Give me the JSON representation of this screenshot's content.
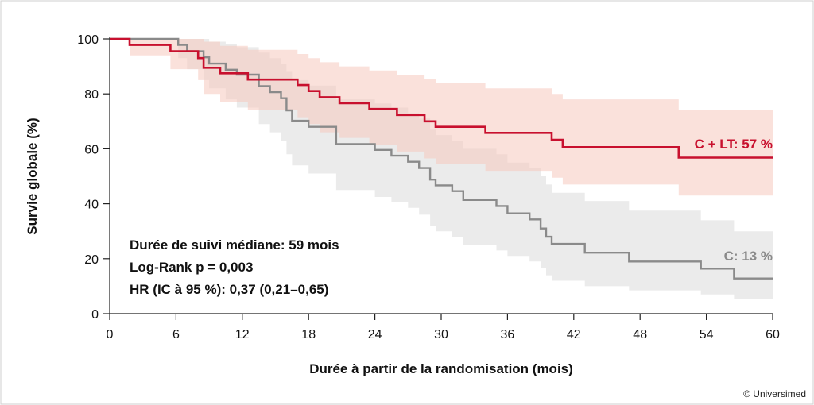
{
  "chart_data": {
    "type": "line",
    "xlabel": "Durée à partir de la randomisation (mois)",
    "ylabel": "Survie globale (%)",
    "xlim": [
      0,
      60
    ],
    "ylim": [
      0,
      100
    ],
    "xticks": [
      0,
      6,
      12,
      18,
      24,
      30,
      36,
      42,
      48,
      54,
      60
    ],
    "yticks": [
      0,
      20,
      40,
      60,
      80,
      100
    ],
    "grid": false,
    "annotations": [
      "Durée de suivi médiane: 59 mois",
      "Log-Rank p = 0,003",
      "HR (IC à 95 %): 0,37 (0,21–0,65)"
    ],
    "series": [
      {
        "label": "C + LT: 57 %",
        "color": "#c8102e",
        "band_color": "#f6c9bd",
        "step": [
          [
            0,
            100
          ],
          [
            1.8,
            97.8
          ],
          [
            5.5,
            95.5
          ],
          [
            8,
            93
          ],
          [
            8.5,
            89.5
          ],
          [
            10,
            87.5
          ],
          [
            12.5,
            85.2
          ],
          [
            17,
            83.2
          ],
          [
            18,
            81
          ],
          [
            19,
            78.8
          ],
          [
            20.8,
            76.6
          ],
          [
            23.5,
            74.5
          ],
          [
            26,
            72.3
          ],
          [
            28.5,
            70
          ],
          [
            29.5,
            68
          ],
          [
            34,
            65.8
          ],
          [
            40,
            63.3
          ],
          [
            41,
            60.6
          ],
          [
            51.5,
            56.8
          ],
          [
            60,
            56.8
          ]
        ],
        "upper": [
          [
            0,
            100
          ],
          [
            1.8,
            100
          ],
          [
            5.5,
            100
          ],
          [
            8,
            100
          ],
          [
            8.5,
            99
          ],
          [
            10,
            97.5
          ],
          [
            12.5,
            96
          ],
          [
            17,
            94.5
          ],
          [
            18,
            93
          ],
          [
            19,
            91.5
          ],
          [
            20.8,
            90
          ],
          [
            23.5,
            88.5
          ],
          [
            26,
            87
          ],
          [
            28.5,
            85.5
          ],
          [
            29.5,
            84
          ],
          [
            34,
            82
          ],
          [
            40,
            80
          ],
          [
            41,
            78
          ],
          [
            51.5,
            74
          ],
          [
            60,
            74
          ]
        ],
        "lower": [
          [
            0,
            100
          ],
          [
            1.8,
            94
          ],
          [
            5.5,
            89
          ],
          [
            8,
            85
          ],
          [
            8.5,
            80
          ],
          [
            10,
            77
          ],
          [
            12.5,
            74
          ],
          [
            17,
            71.5
          ],
          [
            18,
            69
          ],
          [
            19,
            66
          ],
          [
            20.8,
            64
          ],
          [
            23.5,
            61.5
          ],
          [
            26,
            59
          ],
          [
            28.5,
            56.5
          ],
          [
            29.5,
            54.5
          ],
          [
            34,
            52
          ],
          [
            40,
            49.5
          ],
          [
            41,
            47
          ],
          [
            51.5,
            43
          ],
          [
            60,
            43
          ]
        ]
      },
      {
        "label": "C: 13 %",
        "color": "#8a8a8a",
        "band_color": "#e4e4e4",
        "step": [
          [
            0,
            100
          ],
          [
            6.2,
            97.8
          ],
          [
            7,
            95.5
          ],
          [
            8.5,
            93.3
          ],
          [
            9,
            91
          ],
          [
            10.5,
            88.8
          ],
          [
            11.5,
            87
          ],
          [
            13.5,
            82.8
          ],
          [
            14.5,
            80.6
          ],
          [
            15.5,
            78.4
          ],
          [
            16,
            74
          ],
          [
            16.5,
            70.2
          ],
          [
            18,
            68
          ],
          [
            20.5,
            61.7
          ],
          [
            24,
            59.6
          ],
          [
            25.5,
            57.5
          ],
          [
            27,
            55.3
          ],
          [
            28,
            53
          ],
          [
            29,
            48.8
          ],
          [
            29.5,
            46.7
          ],
          [
            31,
            44.6
          ],
          [
            32,
            41.4
          ],
          [
            35,
            39.2
          ],
          [
            36,
            36.5
          ],
          [
            38,
            34.3
          ],
          [
            39,
            31
          ],
          [
            39.5,
            28
          ],
          [
            40,
            25.4
          ],
          [
            43,
            22.2
          ],
          [
            47,
            19
          ],
          [
            53.5,
            16.4
          ],
          [
            56.5,
            12.8
          ],
          [
            60,
            12.8
          ]
        ],
        "upper": [
          [
            0,
            100
          ],
          [
            6.2,
            100
          ],
          [
            7,
            100
          ],
          [
            8.5,
            100
          ],
          [
            9,
            99
          ],
          [
            10.5,
            98
          ],
          [
            11.5,
            97
          ],
          [
            13.5,
            95
          ],
          [
            14.5,
            93
          ],
          [
            15.5,
            91
          ],
          [
            16,
            88
          ],
          [
            16.5,
            85
          ],
          [
            18,
            83
          ],
          [
            20.5,
            78
          ],
          [
            24,
            76.5
          ],
          [
            25.5,
            75
          ],
          [
            27,
            73
          ],
          [
            28,
            71
          ],
          [
            29,
            67
          ],
          [
            29.5,
            65
          ],
          [
            31,
            63
          ],
          [
            32,
            60
          ],
          [
            35,
            58
          ],
          [
            36,
            55
          ],
          [
            38,
            53
          ],
          [
            39,
            50
          ],
          [
            39.5,
            47
          ],
          [
            40,
            44
          ],
          [
            43,
            41
          ],
          [
            47,
            37.5
          ],
          [
            53.5,
            34
          ],
          [
            56.5,
            30
          ],
          [
            60,
            30
          ]
        ],
        "lower": [
          [
            0,
            100
          ],
          [
            6.2,
            93
          ],
          [
            7,
            89
          ],
          [
            8.5,
            85
          ],
          [
            9,
            82
          ],
          [
            10.5,
            78
          ],
          [
            11.5,
            75
          ],
          [
            13.5,
            69
          ],
          [
            14.5,
            66
          ],
          [
            15.5,
            63
          ],
          [
            16,
            58
          ],
          [
            16.5,
            54
          ],
          [
            18,
            51
          ],
          [
            20.5,
            45
          ],
          [
            24,
            42.5
          ],
          [
            25.5,
            40.5
          ],
          [
            27,
            38.5
          ],
          [
            28,
            36
          ],
          [
            29,
            32
          ],
          [
            29.5,
            30
          ],
          [
            31,
            28
          ],
          [
            32,
            25
          ],
          [
            35,
            23
          ],
          [
            36,
            21
          ],
          [
            38,
            19
          ],
          [
            39,
            16.5
          ],
          [
            39.5,
            14
          ],
          [
            40,
            12
          ],
          [
            43,
            10
          ],
          [
            47,
            8.5
          ],
          [
            53.5,
            7
          ],
          [
            56.5,
            5.5
          ],
          [
            60,
            5.5
          ]
        ]
      }
    ]
  },
  "copyright": "© Universimed"
}
